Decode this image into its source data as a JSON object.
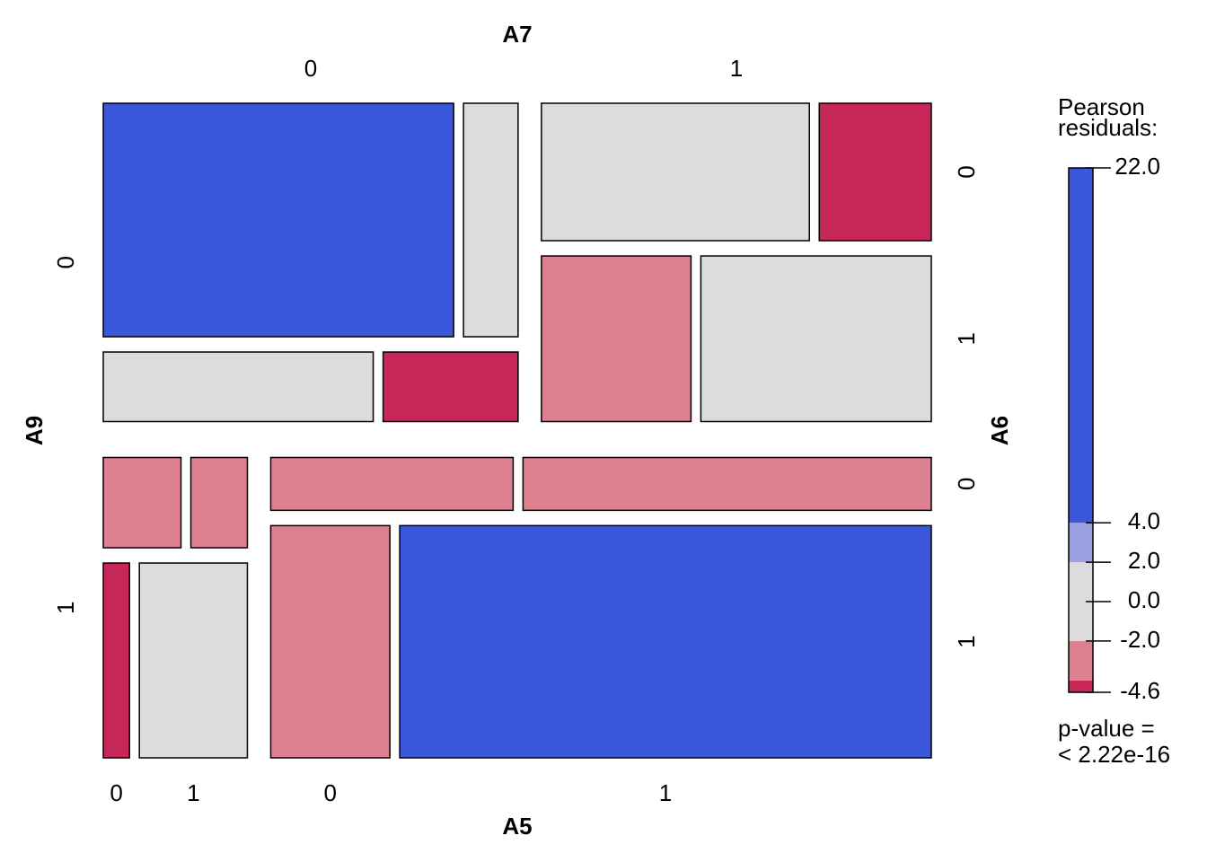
{
  "chart_data": {
    "type": "mosaic",
    "variables": [
      {
        "name": "A9",
        "levels": [
          "0",
          "1"
        ]
      },
      {
        "name": "A7",
        "levels": [
          "0",
          "1"
        ]
      },
      {
        "name": "A6",
        "levels": [
          "0",
          "1"
        ]
      },
      {
        "name": "A5",
        "levels": [
          "0",
          "1"
        ]
      }
    ],
    "counts": [
      [
        [
          [
            122,
            19
          ],
          [
            28,
            14
          ]
        ],
        [
          [
            55,
            23
          ],
          [
            37,
            57
          ]
        ]
      ],
      [
        [
          [
            11,
            8
          ],
          [
            8,
            33
          ]
        ],
        [
          [
            19,
            32
          ],
          [
            41,
            183
          ]
        ]
      ]
    ],
    "colors": [
      [
        [
          [
            "#3b58db",
            "#dcdcdc"
          ],
          [
            "#dcdcdc",
            "#c8275a"
          ]
        ],
        [
          [
            "#dcdcdc",
            "#c8275a"
          ],
          [
            "#dd8090",
            "#dcdcdc"
          ]
        ]
      ],
      [
        [
          [
            "#dd8090",
            "#dd8090"
          ],
          [
            "#c8275a",
            "#dcdcdc"
          ]
        ],
        [
          [
            "#dd8090",
            "#dd8090"
          ],
          [
            "#dd8090",
            "#3b58db"
          ]
        ]
      ]
    ],
    "legend_title": "Pearson residuals:",
    "legend_lim": [
      -4.6,
      22
    ],
    "legend_breaks": [
      -4,
      -2,
      2,
      4
    ],
    "legend_colors": [
      "#c8275a",
      "#dd8090",
      "#dcdcdc",
      "#9aa0e0",
      "#3b58db"
    ],
    "legend_ticks": [
      {
        "value": 22,
        "label": "22.0"
      },
      {
        "value": 4,
        "label": "4.0"
      },
      {
        "value": 2,
        "label": "2.0"
      },
      {
        "value": 0,
        "label": "0.0"
      },
      {
        "value": -2,
        "label": "-2.0"
      },
      {
        "value": -4.6,
        "label": "-4.6"
      }
    ],
    "p_value_label": "p-value =",
    "p_value": "< 2.22e-16"
  }
}
